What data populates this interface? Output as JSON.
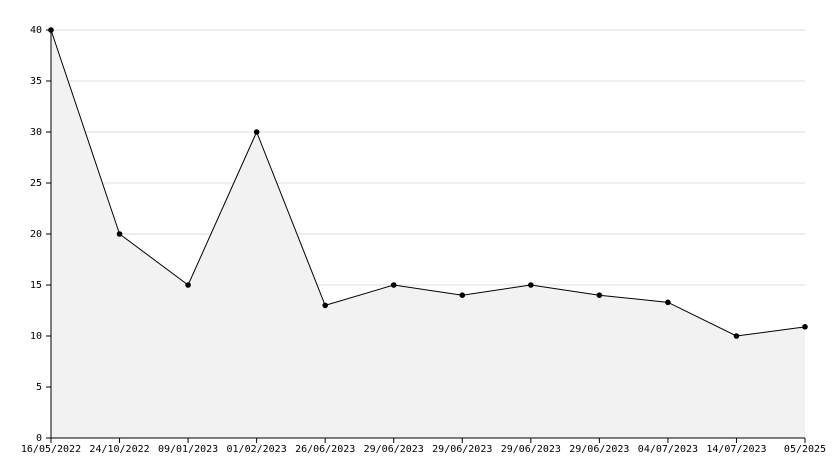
{
  "chart_data": {
    "type": "area",
    "categories": [
      "16/05/2022",
      "24/10/2022",
      "09/01/2023",
      "01/02/2023",
      "26/06/2023",
      "29/06/2023",
      "29/06/2023",
      "29/06/2023",
      "29/06/2023",
      "04/07/2023",
      "14/07/2023",
      "05/2025"
    ],
    "values": [
      40,
      20,
      15,
      30,
      13,
      15,
      14,
      15,
      14,
      13.3,
      10,
      10.9
    ],
    "color": "#000000",
    "fill": "#f2f2f2",
    "ylim": [
      0,
      40
    ],
    "yticks": [
      0,
      5,
      10,
      15,
      20,
      25,
      30,
      35,
      40
    ],
    "grid": true
  }
}
